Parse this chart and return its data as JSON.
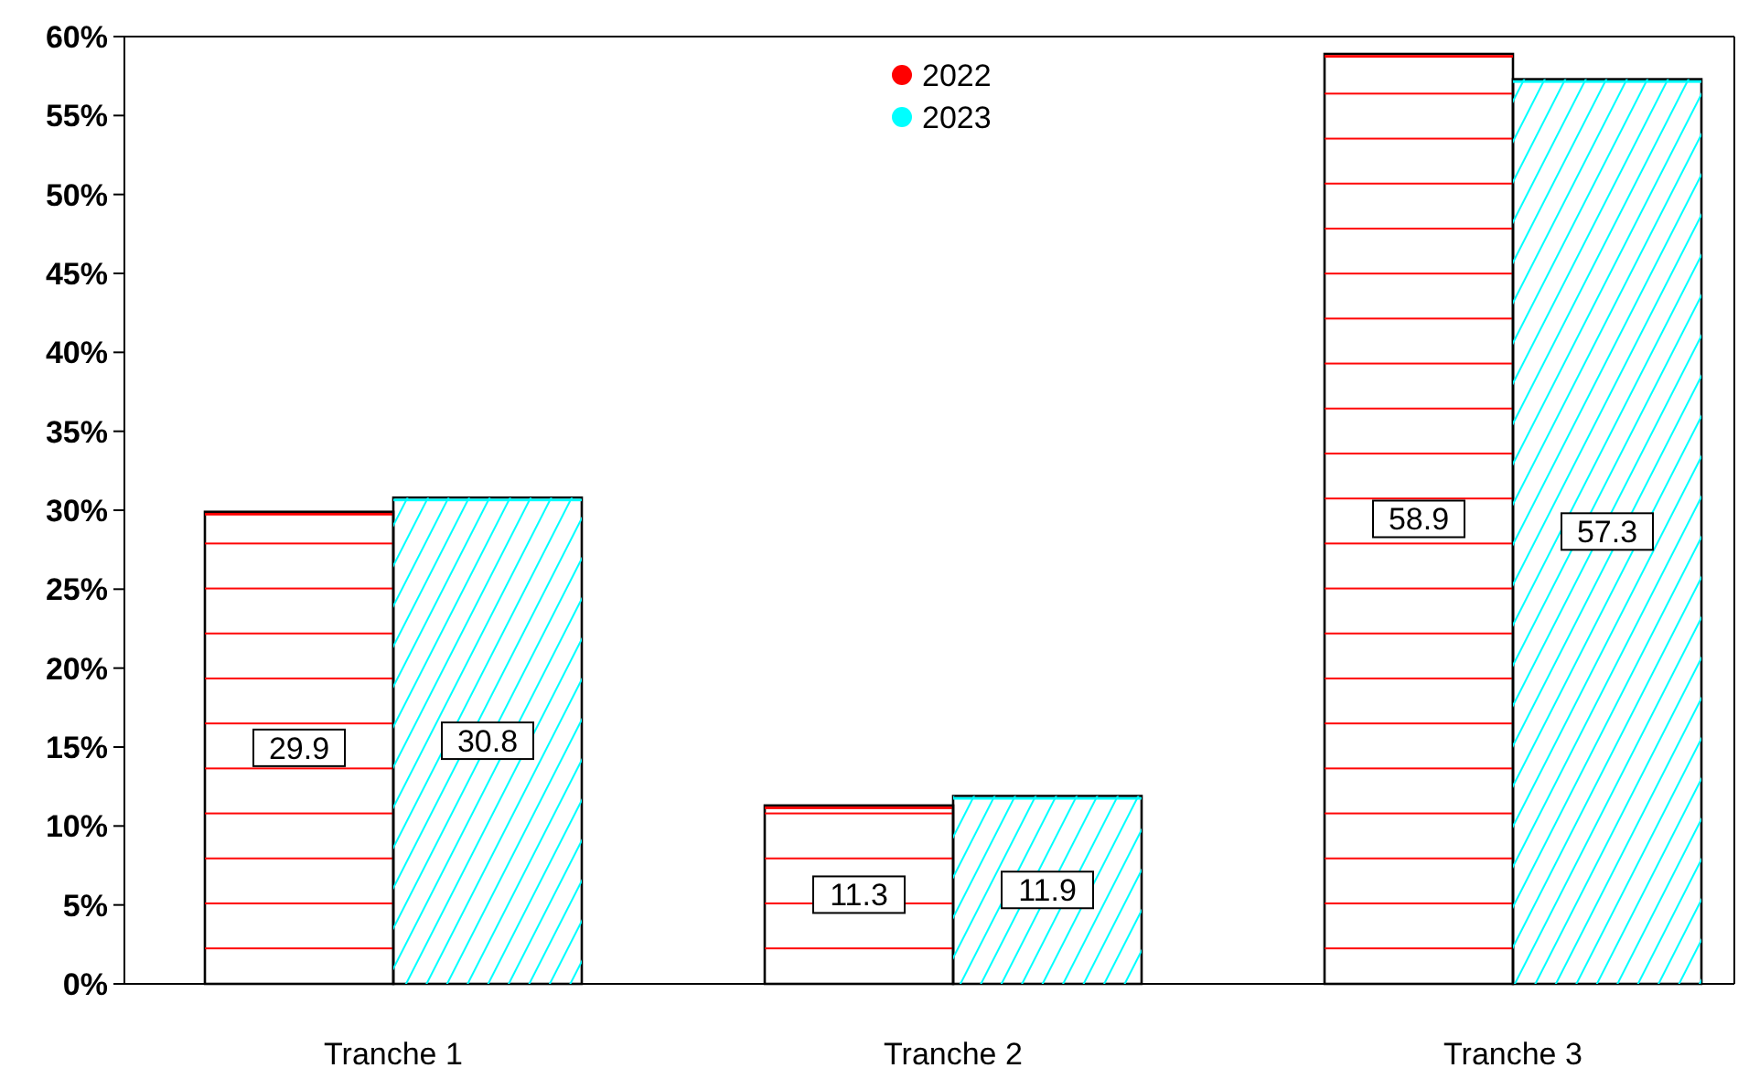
{
  "chart_data": {
    "type": "bar",
    "categories": [
      "Tranche 1",
      "Tranche 2",
      "Tranche 3"
    ],
    "series": [
      {
        "name": "2022",
        "color": "#ff0000",
        "values": [
          29.9,
          11.3,
          58.9
        ]
      },
      {
        "name": "2023",
        "color": "#00ffff",
        "values": [
          30.8,
          11.9,
          57.3
        ]
      }
    ],
    "ylim": [
      0,
      60
    ],
    "yticks": [
      {
        "value": 0,
        "label": "0%"
      },
      {
        "value": 5,
        "label": "5%"
      },
      {
        "value": 10,
        "label": "10%"
      },
      {
        "value": 15,
        "label": "15%"
      },
      {
        "value": 20,
        "label": "20%"
      },
      {
        "value": 25,
        "label": "25%"
      },
      {
        "value": 30,
        "label": "30%"
      },
      {
        "value": 35,
        "label": "35%"
      },
      {
        "value": 40,
        "label": "40%"
      },
      {
        "value": 45,
        "label": "45%"
      },
      {
        "value": 50,
        "label": "50%"
      },
      {
        "value": 55,
        "label": "55%"
      },
      {
        "value": 60,
        "label": "60%"
      }
    ],
    "data_labels": true,
    "legend": "top",
    "grid": false
  }
}
